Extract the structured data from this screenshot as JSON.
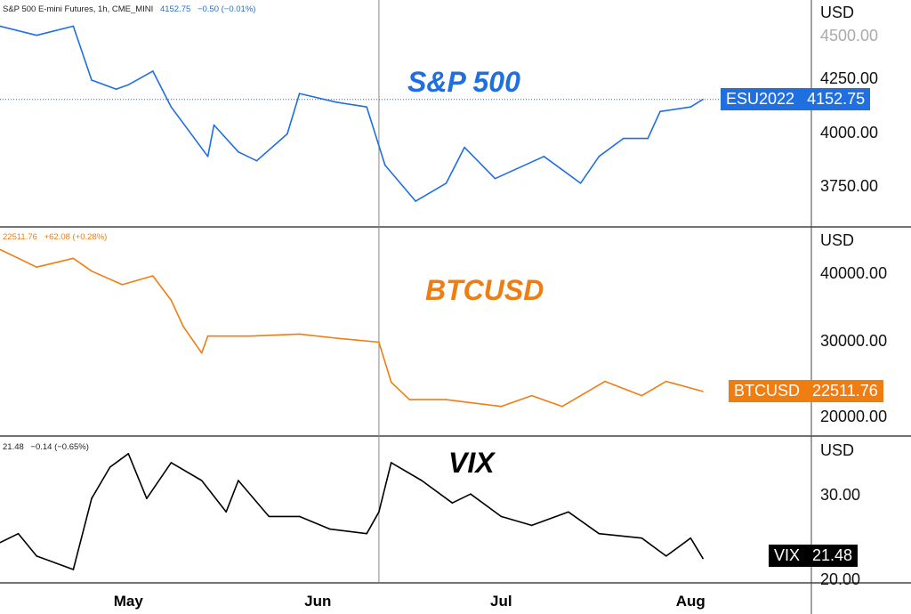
{
  "chart_data": [
    {
      "type": "line",
      "title": "S&P 500",
      "legend": {
        "symbol": "S&P 500 E-mini Futures, 1h, CME_MINI",
        "last": "4152.75",
        "change": "−0.50 (−0.01%)"
      },
      "color": "#1f6fe0",
      "ylabel": "USD",
      "ylim": [
        3640,
        4520
      ],
      "yticks": [
        "4500.00",
        "4250.00",
        "4000.00",
        "3750.00"
      ],
      "last_tag": {
        "name": "ESU2022",
        "value": "4152.75"
      },
      "x": [
        "2022-04-10",
        "2022-04-16",
        "2022-04-22",
        "2022-04-25",
        "2022-04-29",
        "2022-05-01",
        "2022-05-05",
        "2022-05-08",
        "2022-05-14",
        "2022-05-15",
        "2022-05-19",
        "2022-05-22",
        "2022-05-27",
        "2022-05-29",
        "2022-06-04",
        "2022-06-09",
        "2022-06-12",
        "2022-06-17",
        "2022-06-22",
        "2022-06-25",
        "2022-06-30",
        "2022-07-08",
        "2022-07-14",
        "2022-07-17",
        "2022-07-21",
        "2022-07-25",
        "2022-07-27",
        "2022-08-01",
        "2022-08-03"
      ],
      "y": [
        4490,
        4448,
        4490,
        4242,
        4200,
        4220,
        4283,
        4118,
        3890,
        4035,
        3911,
        3870,
        3994,
        4180,
        4140,
        4118,
        3850,
        3684,
        3767,
        3932,
        3788,
        3890,
        3767,
        3890,
        3973,
        3973,
        4097,
        4118,
        4152.75
      ]
    },
    {
      "type": "line",
      "title": "BTCUSD",
      "legend": {
        "last": "22511.76",
        "change": "+62.08 (+0.28%)"
      },
      "color": "#f07d12",
      "ylabel": "USD",
      "ylim": [
        18500,
        44500
      ],
      "yticks": [
        "40000.00",
        "30000.00",
        "20000.00"
      ],
      "last_tag": {
        "name": "BTCUSD",
        "value": "22511.76"
      },
      "x": [
        "2022-04-10",
        "2022-04-16",
        "2022-04-22",
        "2022-04-25",
        "2022-04-30",
        "2022-05-05",
        "2022-05-08",
        "2022-05-10",
        "2022-05-13",
        "2022-05-14",
        "2022-05-21",
        "2022-05-29",
        "2022-06-04",
        "2022-06-11",
        "2022-06-13",
        "2022-06-16",
        "2022-06-22",
        "2022-07-01",
        "2022-07-06",
        "2022-07-11",
        "2022-07-18",
        "2022-07-24",
        "2022-07-28",
        "2022-08-03"
      ],
      "y": [
        43500,
        40900,
        42200,
        40300,
        38300,
        39600,
        36000,
        32100,
        28200,
        30700,
        30700,
        31000,
        30400,
        29800,
        23900,
        21300,
        21300,
        20300,
        21900,
        20300,
        24000,
        21900,
        24000,
        22511.76
      ]
    },
    {
      "type": "line",
      "title": "VIX",
      "legend": {
        "last": "21.48",
        "change": "−0.14 (−0.65%)"
      },
      "color": "#000000",
      "ylabel": "USD",
      "ylim": [
        19.5,
        37
      ],
      "yticks": [
        "30.00",
        "20.00"
      ],
      "last_tag": {
        "name": "VIX",
        "value": "21.48"
      },
      "x": [
        "2022-04-10",
        "2022-04-13",
        "2022-04-16",
        "2022-04-22",
        "2022-04-25",
        "2022-04-28",
        "2022-05-01",
        "2022-05-04",
        "2022-05-08",
        "2022-05-13",
        "2022-05-17",
        "2022-05-19",
        "2022-05-24",
        "2022-05-29",
        "2022-06-03",
        "2022-06-09",
        "2022-06-11",
        "2022-06-13",
        "2022-06-18",
        "2022-06-23",
        "2022-06-26",
        "2022-07-01",
        "2022-07-06",
        "2022-07-12",
        "2022-07-17",
        "2022-07-24",
        "2022-07-28",
        "2022-08-01",
        "2022-08-03"
      ],
      "y": [
        23.6,
        24.8,
        21.8,
        20,
        29.5,
        33.7,
        35.5,
        29.5,
        34.3,
        31.9,
        27.7,
        31.9,
        27.1,
        27.1,
        25.4,
        24.8,
        27.7,
        34.3,
        31.9,
        28.9,
        30.1,
        27.1,
        25.9,
        27.7,
        24.8,
        24.2,
        21.8,
        24.2,
        21.48
      ]
    }
  ],
  "x_axis": {
    "ticks": [
      {
        "label": "May",
        "date": "2022-05-01"
      },
      {
        "label": "Jun",
        "date": "2022-06-01"
      },
      {
        "label": "Jul",
        "date": "2022-07-01"
      },
      {
        "label": "Aug",
        "date": "2022-08-01"
      }
    ]
  },
  "crosshair_date": "2022-06-11"
}
